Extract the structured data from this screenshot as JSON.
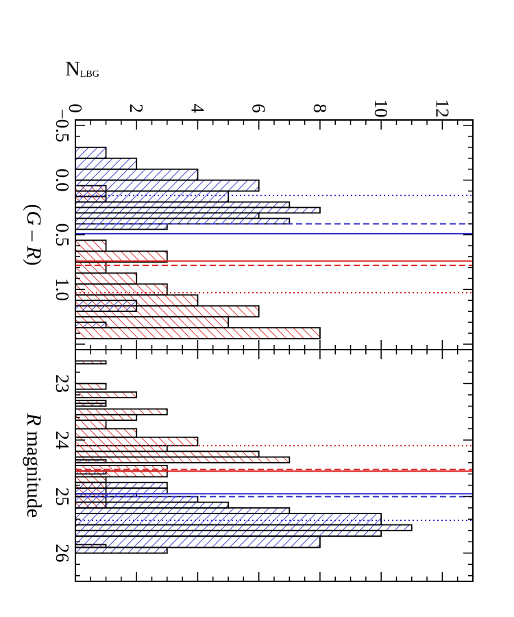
{
  "chart_data": [
    {
      "type": "bar",
      "panel": "top",
      "xlabel_html": [
        "(",
        "G",
        " – ",
        "R",
        ")"
      ],
      "ylabel": "N",
      "ylabel_sub": "LBG",
      "x_ticks": [
        "−0.5",
        "0.0",
        "0.5",
        "1.0"
      ],
      "x_tick_values": [
        -0.5,
        0.0,
        0.5,
        1.0
      ],
      "y_ticks": [
        "0",
        "2",
        "4",
        "6",
        "8",
        "10",
        "12"
      ],
      "y_tick_values": [
        0,
        2,
        4,
        6,
        8,
        10,
        12
      ],
      "xlim": [
        -0.55,
        1.55
      ],
      "ylim": [
        0,
        13
      ],
      "bin_width": 0.1,
      "series": [
        {
          "color": "#2b2bcc",
          "bin_starts": [
            -0.3,
            -0.2,
            -0.1,
            0.0,
            0.1,
            0.2,
            0.25,
            0.3,
            0.35,
            0.4,
            1.1,
            1.3
          ],
          "bin_ends": [
            -0.2,
            -0.1,
            0.0,
            0.1,
            0.2,
            0.25,
            0.3,
            0.35,
            0.4,
            0.45,
            1.2,
            1.35
          ],
          "values": [
            1,
            2,
            4,
            6,
            5,
            7,
            8,
            6,
            7,
            3,
            2,
            1
          ]
        },
        {
          "color": "#dd2222",
          "bin_starts": [
            0.05,
            0.15,
            0.55,
            0.65,
            0.75,
            0.85,
            0.95,
            1.05,
            1.15,
            1.25,
            1.35
          ],
          "bin_ends": [
            0.15,
            0.2,
            0.65,
            0.75,
            0.85,
            0.95,
            1.05,
            1.15,
            1.25,
            1.35,
            1.45
          ],
          "values": [
            1,
            1,
            1,
            3,
            1,
            2,
            3,
            4,
            6,
            5,
            8
          ]
        }
      ],
      "reference_lines": [
        {
          "color": "#2b2bcc",
          "style": "dotted",
          "value": 0.14
        },
        {
          "color": "#2b2bcc",
          "style": "dashed",
          "value": 0.4
        },
        {
          "color": "#2b2bcc",
          "style": "solid",
          "value": 0.49
        },
        {
          "color": "#dd2222",
          "style": "solid",
          "value": 0.74
        },
        {
          "color": "#dd2222",
          "style": "dashed",
          "value": 0.78
        },
        {
          "color": "#dd2222",
          "style": "dotted",
          "value": 1.03
        }
      ]
    },
    {
      "type": "bar",
      "panel": "bottom",
      "xlabel_html": [
        "R",
        " magnitude"
      ],
      "x_ticks": [
        "23",
        "24",
        "25",
        "26"
      ],
      "x_tick_values": [
        23,
        24,
        25,
        26
      ],
      "y_ticks": [
        "0",
        "2",
        "4",
        "6",
        "8",
        "10",
        "12"
      ],
      "y_tick_values": [
        0,
        2,
        4,
        6,
        8,
        10,
        12
      ],
      "xlim": [
        22.4,
        26.5
      ],
      "ylim": [
        0,
        13
      ],
      "series": [
        {
          "color": "#2b2bcc",
          "bin_starts": [
            23.35,
            24.35,
            24.55,
            24.75,
            24.85,
            24.95,
            25.0,
            25.1,
            25.2,
            25.3,
            25.5,
            25.6,
            25.7,
            25.9
          ],
          "bin_ends": [
            23.4,
            24.4,
            24.6,
            24.85,
            24.95,
            25.0,
            25.1,
            25.2,
            25.3,
            25.5,
            25.6,
            25.7,
            25.9,
            26.0
          ],
          "values": [
            1,
            1,
            1,
            3,
            3,
            2,
            4,
            5,
            7,
            10,
            11,
            10,
            8,
            3
          ]
        },
        {
          "color": "#dd2222",
          "bin_starts": [
            22.6,
            23.0,
            23.15,
            23.3,
            23.45,
            23.55,
            23.65,
            23.8,
            23.95,
            24.1,
            24.2,
            24.3,
            24.45,
            24.55,
            24.65,
            24.75,
            24.85,
            24.95,
            25.0,
            25.1,
            25.85
          ],
          "bin_ends": [
            22.65,
            23.1,
            23.25,
            23.4,
            23.55,
            23.65,
            23.8,
            23.95,
            24.1,
            24.2,
            24.3,
            24.4,
            24.55,
            24.65,
            24.75,
            24.85,
            24.95,
            25.0,
            25.1,
            25.2,
            25.9
          ],
          "values": [
            1,
            1,
            2,
            1,
            3,
            2,
            1,
            2,
            4,
            3,
            6,
            7,
            3,
            3,
            1,
            1,
            1,
            1,
            1,
            1,
            1
          ]
        }
      ],
      "reference_lines": [
        {
          "color": "#dd2222",
          "style": "dotted",
          "value": 24.1
        },
        {
          "color": "#dd2222",
          "style": "dashed",
          "value": 24.52
        },
        {
          "color": "#dd2222",
          "style": "solid",
          "value": 24.55
        },
        {
          "color": "#2b2bcc",
          "style": "solid",
          "value": 24.95
        },
        {
          "color": "#2b2bcc",
          "style": "dashed",
          "value": 25.0
        },
        {
          "color": "#2b2bcc",
          "style": "dotted",
          "value": 25.42
        }
      ]
    }
  ]
}
